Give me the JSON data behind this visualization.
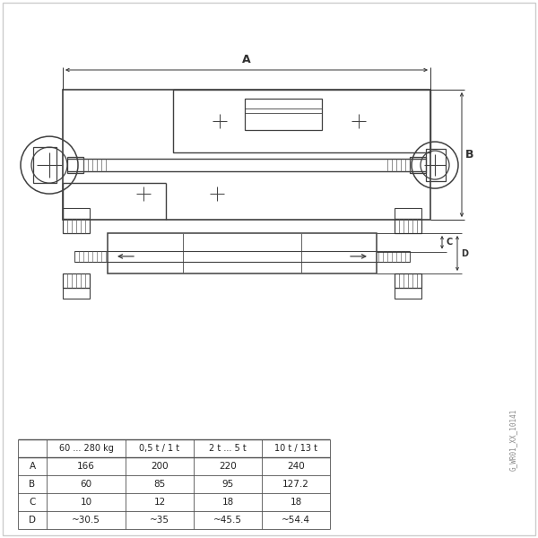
{
  "table_headers": [
    "",
    "60 ... 280 kg",
    "0,5 t / 1 t",
    "2 t ... 5 t",
    "10 t / 13 t"
  ],
  "table_rows": [
    [
      "A",
      "166",
      "200",
      "220",
      "240"
    ],
    [
      "B",
      "60",
      "85",
      "95",
      "127.2"
    ],
    [
      "C",
      "10",
      "12",
      "18",
      "18"
    ],
    [
      "D",
      "~30.5",
      "~35",
      "~45.5",
      "~54.4"
    ]
  ],
  "watermark": "G_WR01_XX_10141",
  "bg_color": "#ffffff",
  "line_color": "#404040",
  "dim_color": "#303030",
  "thin_color": "#606060"
}
